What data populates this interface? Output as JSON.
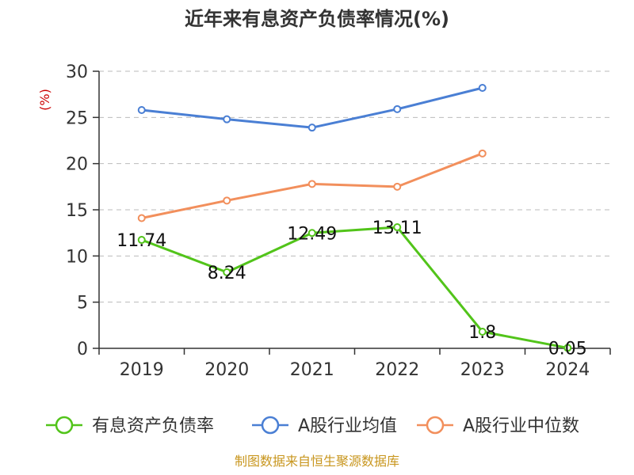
{
  "chart_data": {
    "type": "line",
    "title": "近年来有息资产负债率情况(%)",
    "ylabel": "(%)",
    "categories": [
      "2019",
      "2020",
      "2021",
      "2022",
      "2023",
      "2024"
    ],
    "ylim": [
      0,
      30
    ],
    "yticks": [
      "0",
      "5",
      "10",
      "15",
      "20",
      "25",
      "30"
    ],
    "grid": true,
    "legend_position": "bottom",
    "series": [
      {
        "name": "有息资产负债率",
        "color": "#52c41a",
        "values": [
          11.74,
          8.24,
          12.49,
          13.11,
          1.8,
          0.05
        ],
        "labels": [
          "11.74",
          "8.24",
          "12.49",
          "13.11",
          "1.8",
          "0.05"
        ]
      },
      {
        "name": "A股行业均值",
        "color": "#4a7fd4",
        "values": [
          25.8,
          24.8,
          23.9,
          25.9,
          28.2,
          null
        ]
      },
      {
        "name": "A股行业中位数",
        "color": "#f28f5c",
        "values": [
          14.1,
          16.0,
          17.8,
          17.5,
          21.1,
          null
        ]
      }
    ]
  },
  "footer": {
    "source": "制图数据来自恒生聚源数据库"
  }
}
